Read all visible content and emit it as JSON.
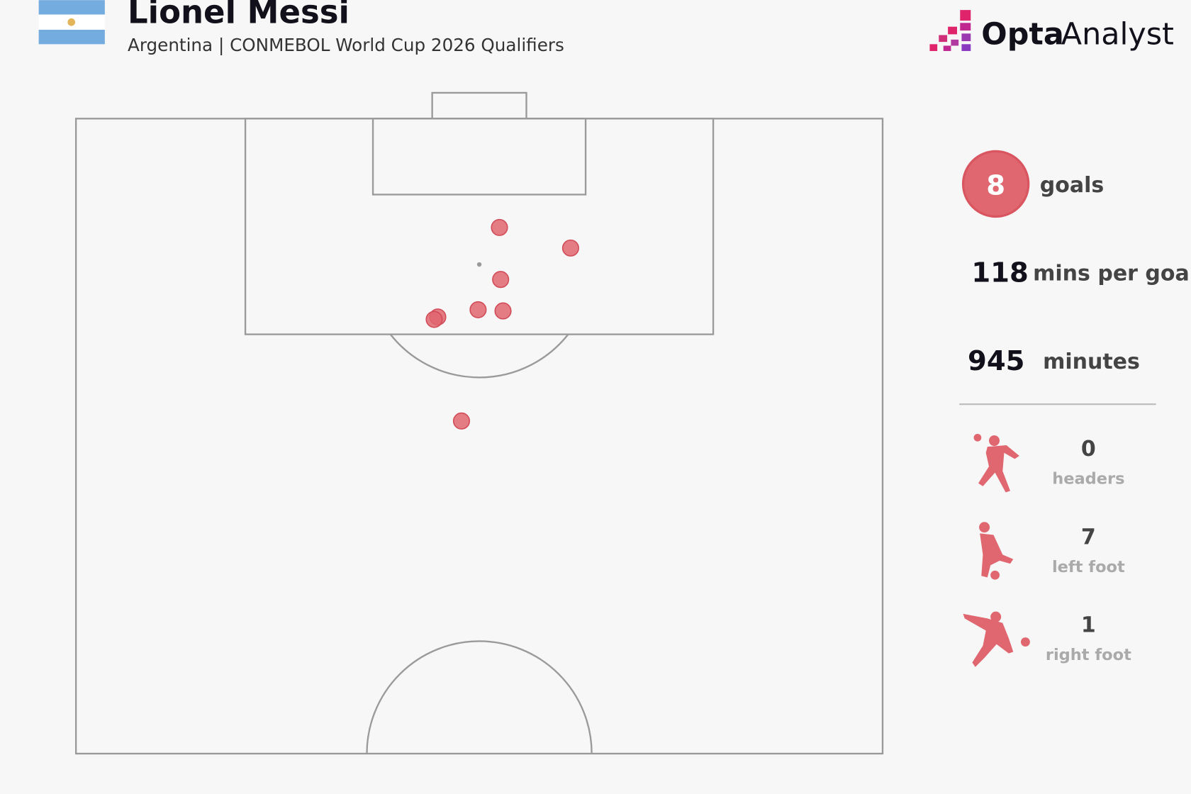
{
  "chart_data": {
    "type": "shotmap",
    "title": "Lionel Messi",
    "subtitle": "Argentina | CONMEBOL World Cup 2026 Qualifiers",
    "brand": [
      "Opta",
      "Analyst"
    ],
    "color": "#e06670",
    "xlim": [
      0,
      68
    ],
    "ylim": [
      0,
      52.5
    ],
    "x": [
      35.7,
      41.7,
      35.8,
      33.9,
      36.0,
      30.5,
      30.2,
      32.5
    ],
    "y": [
      9.0,
      10.7,
      13.3,
      15.8,
      15.9,
      16.4,
      16.6,
      25.0
    ],
    "stats": [
      {
        "value": 8,
        "label": "goals"
      },
      {
        "value": 118,
        "label": "mins per goal"
      },
      {
        "value": 945,
        "label": "minutes"
      }
    ],
    "breakdown": [
      {
        "value": 0,
        "label": "headers"
      },
      {
        "value": 7,
        "label": "left foot"
      },
      {
        "value": 1,
        "label": "right foot"
      }
    ]
  }
}
